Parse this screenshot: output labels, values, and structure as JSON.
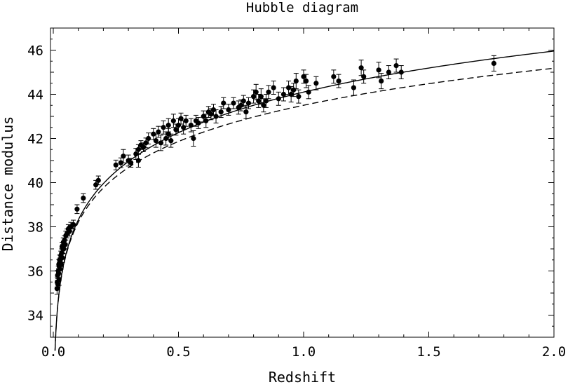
{
  "chart_data": {
    "type": "scatter",
    "title": "Hubble diagram",
    "xlabel": "Redshift",
    "ylabel": "Distance modulus",
    "xlim": [
      0.0,
      2.0
    ],
    "ylim": [
      33.0,
      47.0
    ],
    "xticks": [
      0.0,
      0.5,
      1.0,
      1.5,
      2.0
    ],
    "xtick_labels": [
      "0.0",
      "0.5",
      "1.0",
      "1.5",
      "2.0"
    ],
    "yticks": [
      34,
      36,
      38,
      40,
      42,
      44,
      46
    ],
    "ytick_labels": [
      "34",
      "36",
      "38",
      "40",
      "42",
      "44",
      "46"
    ],
    "grid": false,
    "colors": {
      "data": "#000000",
      "frame": "#000000",
      "background": "#ffffff"
    },
    "series": [
      {
        "style": "points-with-error-bars",
        "points": [
          [
            0.015,
            35.2,
            0.25
          ],
          [
            0.016,
            35.5,
            0.22
          ],
          [
            0.017,
            35.8,
            0.22
          ],
          [
            0.018,
            35.4,
            0.25
          ],
          [
            0.02,
            36.0,
            0.22
          ],
          [
            0.021,
            35.9,
            0.2
          ],
          [
            0.022,
            36.3,
            0.22
          ],
          [
            0.023,
            35.6,
            0.25
          ],
          [
            0.024,
            36.2,
            0.2
          ],
          [
            0.025,
            36.5,
            0.22
          ],
          [
            0.026,
            36.1,
            0.2
          ],
          [
            0.028,
            36.4,
            0.2
          ],
          [
            0.03,
            36.7,
            0.2
          ],
          [
            0.031,
            36.3,
            0.22
          ],
          [
            0.033,
            36.8,
            0.2
          ],
          [
            0.035,
            37.1,
            0.2
          ],
          [
            0.036,
            36.6,
            0.22
          ],
          [
            0.038,
            37.0,
            0.2
          ],
          [
            0.04,
            37.3,
            0.2
          ],
          [
            0.042,
            37.0,
            0.22
          ],
          [
            0.045,
            37.4,
            0.2
          ],
          [
            0.048,
            37.2,
            0.2
          ],
          [
            0.05,
            37.6,
            0.2
          ],
          [
            0.055,
            37.7,
            0.2
          ],
          [
            0.06,
            37.9,
            0.2
          ],
          [
            0.065,
            37.8,
            0.22
          ],
          [
            0.07,
            38.0,
            0.2
          ],
          [
            0.08,
            38.1,
            0.2
          ],
          [
            0.095,
            38.8,
            0.2
          ],
          [
            0.12,
            39.3,
            0.2
          ],
          [
            0.17,
            39.9,
            0.2
          ],
          [
            0.18,
            40.1,
            0.2
          ],
          [
            0.25,
            40.8,
            0.22
          ],
          [
            0.27,
            40.9,
            0.22
          ],
          [
            0.28,
            41.2,
            0.3
          ],
          [
            0.3,
            41.0,
            0.25
          ],
          [
            0.31,
            40.9,
            0.2
          ],
          [
            0.33,
            41.3,
            0.25
          ],
          [
            0.34,
            41.5,
            0.22
          ],
          [
            0.34,
            41.0,
            0.3
          ],
          [
            0.35,
            41.7,
            0.2
          ],
          [
            0.36,
            41.6,
            0.2
          ],
          [
            0.37,
            41.8,
            0.22
          ],
          [
            0.38,
            42.0,
            0.25
          ],
          [
            0.4,
            42.2,
            0.25
          ],
          [
            0.41,
            41.9,
            0.3
          ],
          [
            0.42,
            42.3,
            0.25
          ],
          [
            0.43,
            41.8,
            0.35
          ],
          [
            0.44,
            42.5,
            0.3
          ],
          [
            0.45,
            42.0,
            0.3
          ],
          [
            0.46,
            42.6,
            0.3
          ],
          [
            0.46,
            42.2,
            0.25
          ],
          [
            0.47,
            41.9,
            0.3
          ],
          [
            0.48,
            42.8,
            0.3
          ],
          [
            0.49,
            42.4,
            0.25
          ],
          [
            0.5,
            42.6,
            0.3
          ],
          [
            0.51,
            42.9,
            0.25
          ],
          [
            0.52,
            42.5,
            0.3
          ],
          [
            0.53,
            42.8,
            0.25
          ],
          [
            0.55,
            42.6,
            0.3
          ],
          [
            0.56,
            42.0,
            0.35
          ],
          [
            0.57,
            42.8,
            0.25
          ],
          [
            0.58,
            42.7,
            0.25
          ],
          [
            0.6,
            43.0,
            0.25
          ],
          [
            0.61,
            42.8,
            0.3
          ],
          [
            0.62,
            43.2,
            0.25
          ],
          [
            0.63,
            43.1,
            0.25
          ],
          [
            0.64,
            43.3,
            0.25
          ],
          [
            0.65,
            43.0,
            0.3
          ],
          [
            0.67,
            43.2,
            0.25
          ],
          [
            0.68,
            43.6,
            0.25
          ],
          [
            0.7,
            43.3,
            0.25
          ],
          [
            0.72,
            43.6,
            0.25
          ],
          [
            0.74,
            43.4,
            0.3
          ],
          [
            0.75,
            43.5,
            0.25
          ],
          [
            0.76,
            43.7,
            0.25
          ],
          [
            0.77,
            43.2,
            0.3
          ],
          [
            0.78,
            43.6,
            0.25
          ],
          [
            0.8,
            43.9,
            0.3
          ],
          [
            0.81,
            44.1,
            0.35
          ],
          [
            0.82,
            43.7,
            0.3
          ],
          [
            0.83,
            43.9,
            0.35
          ],
          [
            0.84,
            43.5,
            0.3
          ],
          [
            0.85,
            43.7,
            0.3
          ],
          [
            0.86,
            44.1,
            0.3
          ],
          [
            0.88,
            44.3,
            0.3
          ],
          [
            0.9,
            43.8,
            0.3
          ],
          [
            0.92,
            44.0,
            0.3
          ],
          [
            0.94,
            44.3,
            0.3
          ],
          [
            0.95,
            44.0,
            0.35
          ],
          [
            0.96,
            44.2,
            0.3
          ],
          [
            0.97,
            44.6,
            0.35
          ],
          [
            0.98,
            43.9,
            0.3
          ],
          [
            1.0,
            44.8,
            0.3
          ],
          [
            1.01,
            44.6,
            0.3
          ],
          [
            1.02,
            44.1,
            0.3
          ],
          [
            1.05,
            44.5,
            0.3
          ],
          [
            1.12,
            44.8,
            0.3
          ],
          [
            1.14,
            44.6,
            0.3
          ],
          [
            1.2,
            44.3,
            0.35
          ],
          [
            1.23,
            45.2,
            0.35
          ],
          [
            1.24,
            44.8,
            0.3
          ],
          [
            1.3,
            45.1,
            0.35
          ],
          [
            1.31,
            44.6,
            0.35
          ],
          [
            1.34,
            45.0,
            0.3
          ],
          [
            1.37,
            45.3,
            0.3
          ],
          [
            1.39,
            45.0,
            0.3
          ],
          [
            1.76,
            45.4,
            0.35
          ]
        ]
      },
      {
        "style": "solid-line",
        "curve": "accelerating"
      },
      {
        "style": "dashed-line",
        "curve": "decelerating"
      }
    ]
  }
}
